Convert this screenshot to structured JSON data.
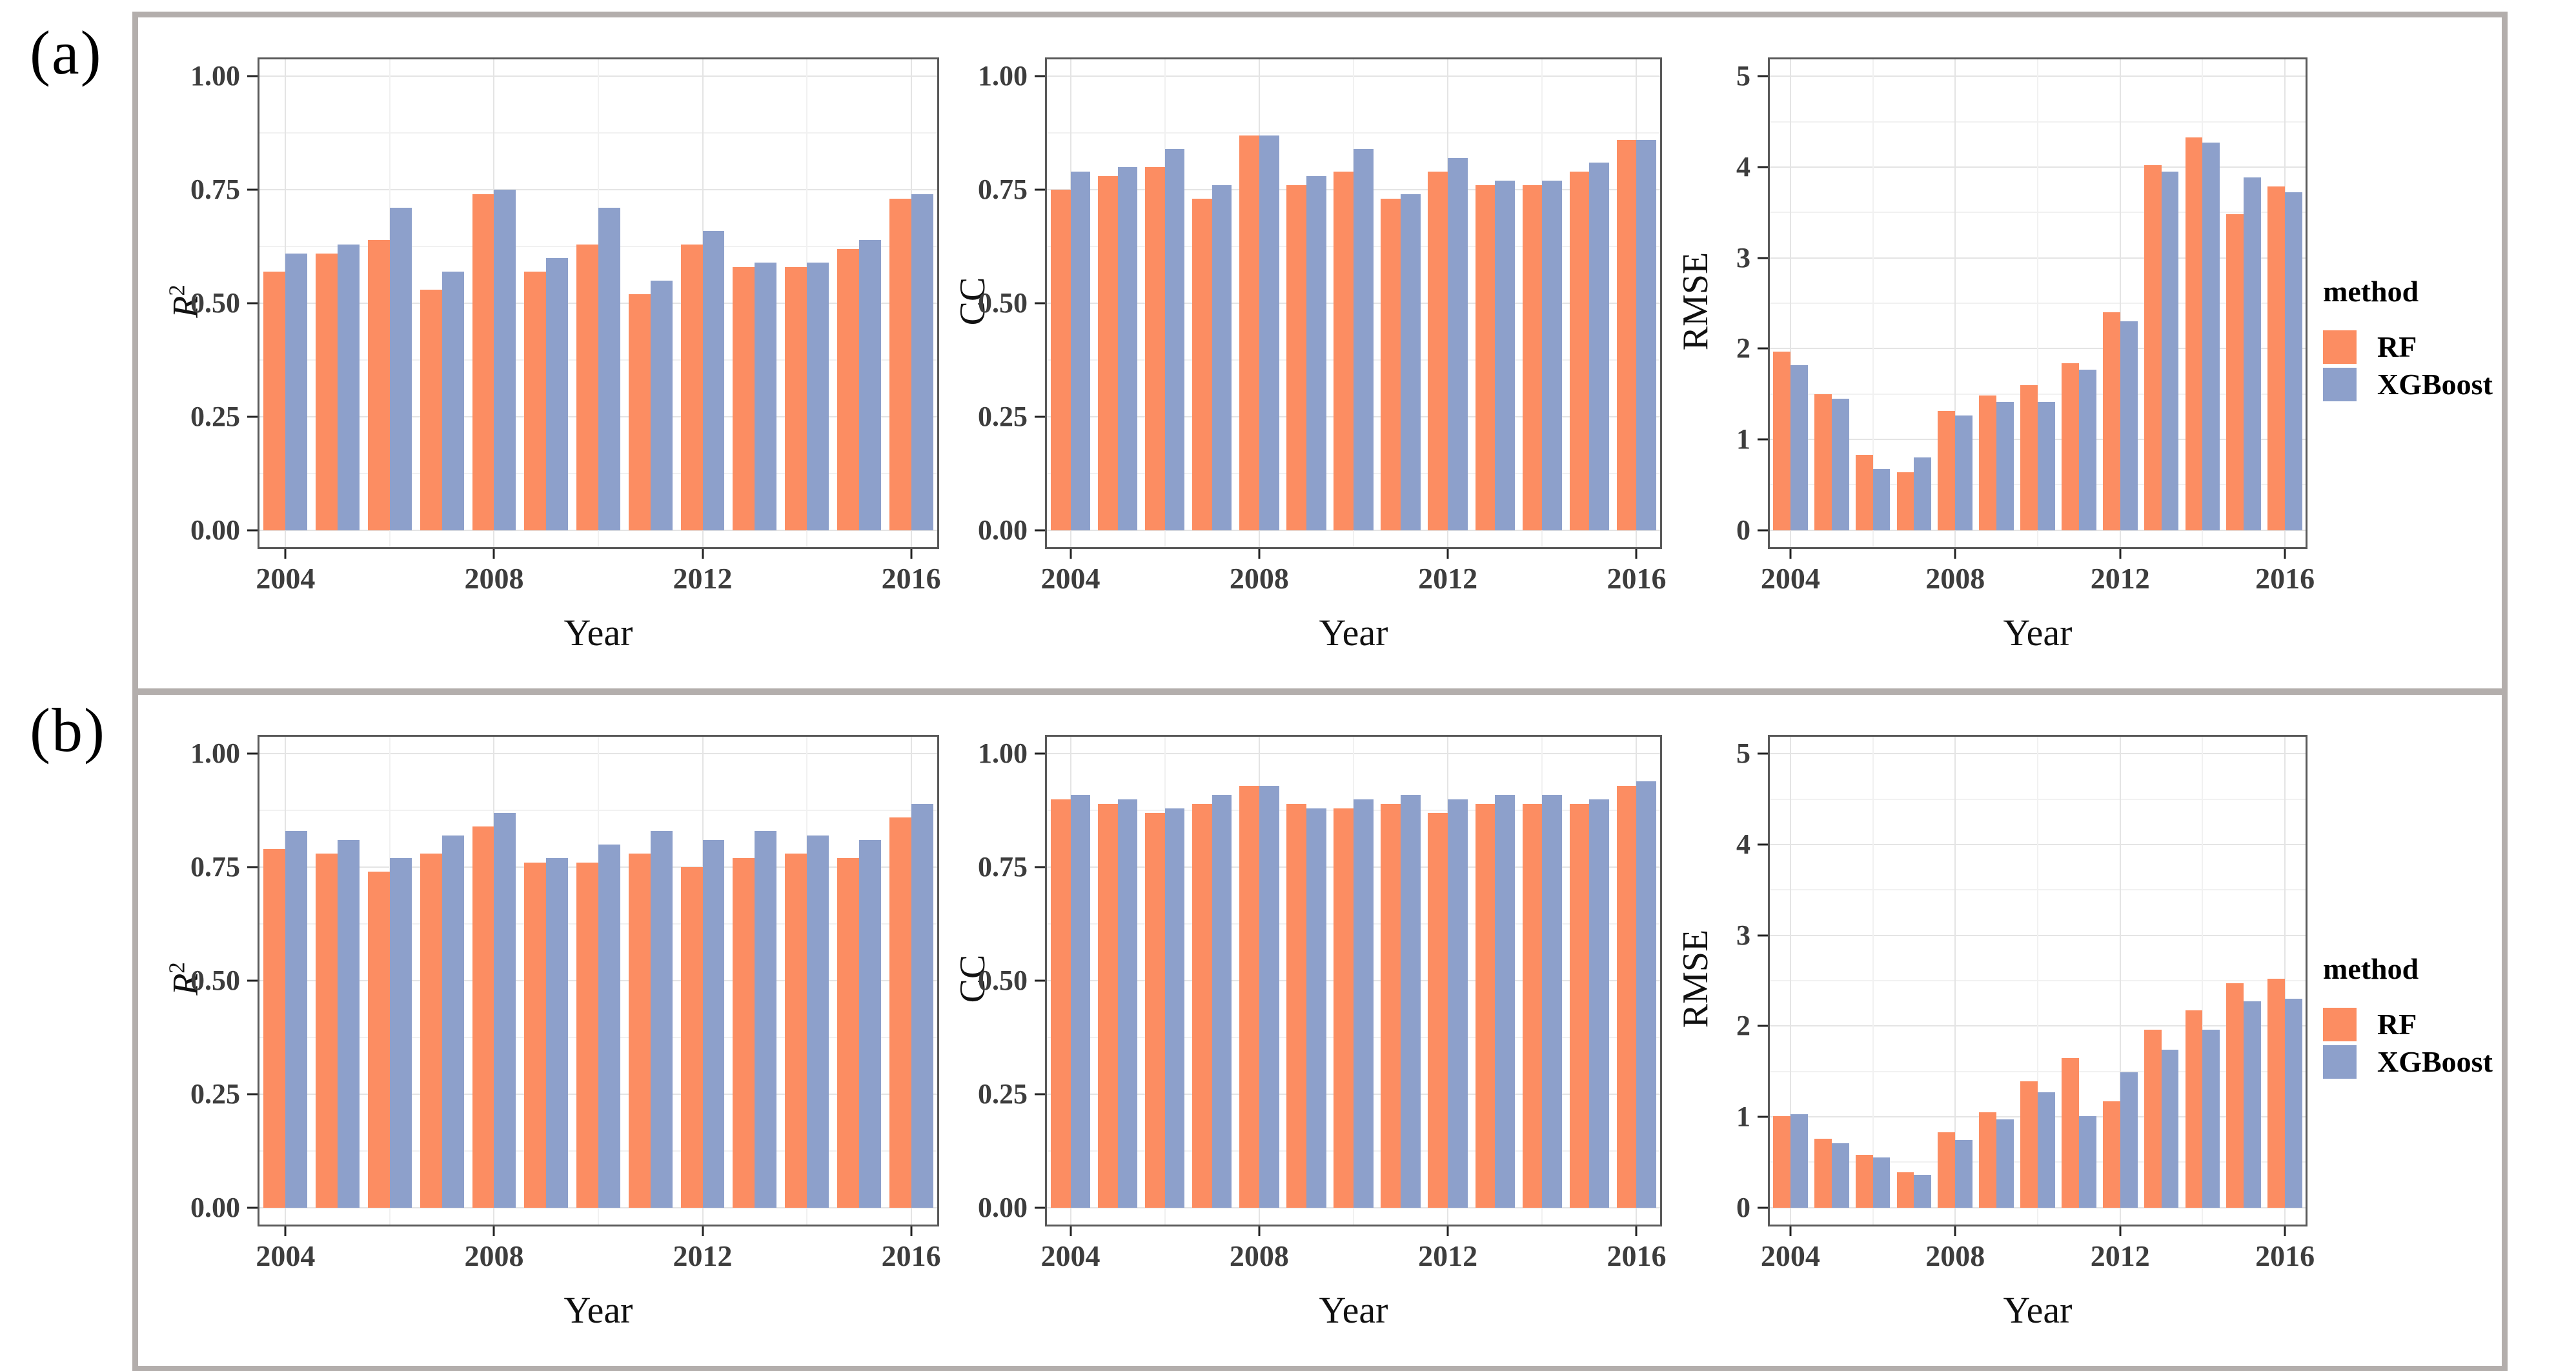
{
  "ui": {
    "panels": [
      {
        "label": "(a)"
      },
      {
        "label": "(b)"
      }
    ],
    "legend": {
      "title": "method",
      "items": [
        {
          "label": "RF",
          "color": "#FC8D62"
        },
        {
          "label": "XGBoost",
          "color": "#8DA0CB"
        }
      ]
    },
    "colors": {
      "rf_orange": "#FC8D62",
      "xgboost_blue": "#8DA0CB",
      "panel_border": "#595959",
      "outer_box_border": "#b3aeac"
    }
  },
  "chart_data": [
    {
      "panel": "a",
      "type": "bar",
      "ylabel": "R²",
      "ylabel_parts": {
        "italic": "R",
        "sup": "2"
      },
      "xlabel": "Year",
      "categories": [
        2004,
        2005,
        2006,
        2007,
        2008,
        2009,
        2010,
        2011,
        2012,
        2013,
        2014,
        2015,
        2016
      ],
      "series": [
        {
          "name": "RF",
          "color": "#FC8D62",
          "values": [
            0.57,
            0.61,
            0.64,
            0.53,
            0.74,
            0.57,
            0.63,
            0.52,
            0.63,
            0.58,
            0.58,
            0.62,
            0.73
          ]
        },
        {
          "name": "XGBoost",
          "color": "#8DA0CB",
          "values": [
            0.61,
            0.63,
            0.71,
            0.57,
            0.75,
            0.6,
            0.71,
            0.55,
            0.66,
            0.59,
            0.59,
            0.64,
            0.74
          ]
        }
      ],
      "ylim": [
        0,
        1
      ],
      "yticks": [
        0,
        0.25,
        0.5,
        0.75,
        1
      ],
      "ytick_labels": [
        "0.00",
        "0.25",
        "0.50",
        "0.75",
        "1.00"
      ],
      "xticks": [
        2004,
        2008,
        2012,
        2016
      ],
      "xtick_labels": [
        "2004",
        "2008",
        "2012",
        "2016"
      ],
      "grid": true,
      "legend_position": "right"
    },
    {
      "panel": "a",
      "type": "bar",
      "ylabel": "CC",
      "ylabel_parts": {
        "text": "CC"
      },
      "xlabel": "Year",
      "categories": [
        2004,
        2005,
        2006,
        2007,
        2008,
        2009,
        2010,
        2011,
        2012,
        2013,
        2014,
        2015,
        2016
      ],
      "series": [
        {
          "name": "RF",
          "color": "#FC8D62",
          "values": [
            0.75,
            0.78,
            0.8,
            0.73,
            0.87,
            0.76,
            0.79,
            0.73,
            0.79,
            0.76,
            0.76,
            0.79,
            0.86
          ]
        },
        {
          "name": "XGBoost",
          "color": "#8DA0CB",
          "values": [
            0.79,
            0.8,
            0.84,
            0.76,
            0.87,
            0.78,
            0.84,
            0.74,
            0.82,
            0.77,
            0.77,
            0.81,
            0.86
          ]
        }
      ],
      "ylim": [
        0,
        1
      ],
      "yticks": [
        0,
        0.25,
        0.5,
        0.75,
        1
      ],
      "ytick_labels": [
        "0.00",
        "0.25",
        "0.50",
        "0.75",
        "1.00"
      ],
      "xticks": [
        2004,
        2008,
        2012,
        2016
      ],
      "xtick_labels": [
        "2004",
        "2008",
        "2012",
        "2016"
      ],
      "grid": true,
      "legend_position": "right"
    },
    {
      "panel": "a",
      "type": "bar",
      "ylabel": "RMSE",
      "ylabel_parts": {
        "text": "RMSE"
      },
      "xlabel": "Year",
      "categories": [
        2004,
        2005,
        2006,
        2007,
        2008,
        2009,
        2010,
        2011,
        2012,
        2013,
        2014,
        2015,
        2016
      ],
      "series": [
        {
          "name": "RF",
          "color": "#FC8D62",
          "values": [
            1.97,
            1.5,
            0.83,
            0.64,
            1.31,
            1.48,
            1.6,
            1.84,
            2.4,
            4.02,
            4.33,
            3.48,
            3.79
          ]
        },
        {
          "name": "XGBoost",
          "color": "#8DA0CB",
          "values": [
            1.82,
            1.45,
            0.67,
            0.8,
            1.26,
            1.41,
            1.41,
            1.77,
            2.3,
            3.95,
            4.27,
            3.89,
            3.72
          ]
        }
      ],
      "ylim": [
        0,
        5
      ],
      "yticks": [
        0,
        1,
        2,
        3,
        4,
        5
      ],
      "ytick_labels": [
        "0",
        "1",
        "2",
        "3",
        "4",
        "5"
      ],
      "xticks": [
        2004,
        2008,
        2012,
        2016
      ],
      "xtick_labels": [
        "2004",
        "2008",
        "2012",
        "2016"
      ],
      "grid": true,
      "legend_position": "right"
    },
    {
      "panel": "b",
      "type": "bar",
      "ylabel": "R²",
      "ylabel_parts": {
        "italic": "R",
        "sup": "2"
      },
      "xlabel": "Year",
      "categories": [
        2004,
        2005,
        2006,
        2007,
        2008,
        2009,
        2010,
        2011,
        2012,
        2013,
        2014,
        2015,
        2016
      ],
      "series": [
        {
          "name": "RF",
          "color": "#FC8D62",
          "values": [
            0.79,
            0.78,
            0.74,
            0.78,
            0.84,
            0.76,
            0.76,
            0.78,
            0.75,
            0.77,
            0.78,
            0.77,
            0.86
          ]
        },
        {
          "name": "XGBoost",
          "color": "#8DA0CB",
          "values": [
            0.83,
            0.81,
            0.77,
            0.82,
            0.87,
            0.77,
            0.8,
            0.83,
            0.81,
            0.83,
            0.82,
            0.81,
            0.89
          ]
        }
      ],
      "ylim": [
        0,
        1
      ],
      "yticks": [
        0,
        0.25,
        0.5,
        0.75,
        1
      ],
      "ytick_labels": [
        "0.00",
        "0.25",
        "0.50",
        "0.75",
        "1.00"
      ],
      "xticks": [
        2004,
        2008,
        2012,
        2016
      ],
      "xtick_labels": [
        "2004",
        "2008",
        "2012",
        "2016"
      ],
      "grid": true,
      "legend_position": "right"
    },
    {
      "panel": "b",
      "type": "bar",
      "ylabel": "CC",
      "ylabel_parts": {
        "text": "CC"
      },
      "xlabel": "Year",
      "categories": [
        2004,
        2005,
        2006,
        2007,
        2008,
        2009,
        2010,
        2011,
        2012,
        2013,
        2014,
        2015,
        2016
      ],
      "series": [
        {
          "name": "RF",
          "color": "#FC8D62",
          "values": [
            0.9,
            0.89,
            0.87,
            0.89,
            0.93,
            0.89,
            0.88,
            0.89,
            0.87,
            0.89,
            0.89,
            0.89,
            0.93
          ]
        },
        {
          "name": "XGBoost",
          "color": "#8DA0CB",
          "values": [
            0.91,
            0.9,
            0.88,
            0.91,
            0.93,
            0.88,
            0.9,
            0.91,
            0.9,
            0.91,
            0.91,
            0.9,
            0.94
          ]
        }
      ],
      "ylim": [
        0,
        1
      ],
      "yticks": [
        0,
        0.25,
        0.5,
        0.75,
        1
      ],
      "ytick_labels": [
        "0.00",
        "0.25",
        "0.50",
        "0.75",
        "1.00"
      ],
      "xticks": [
        2004,
        2008,
        2012,
        2016
      ],
      "xtick_labels": [
        "2004",
        "2008",
        "2012",
        "2016"
      ],
      "grid": true,
      "legend_position": "right"
    },
    {
      "panel": "b",
      "type": "bar",
      "ylabel": "RMSE",
      "ylabel_parts": {
        "text": "RMSE"
      },
      "xlabel": "Year",
      "categories": [
        2004,
        2005,
        2006,
        2007,
        2008,
        2009,
        2010,
        2011,
        2012,
        2013,
        2014,
        2015,
        2016
      ],
      "series": [
        {
          "name": "RF",
          "color": "#FC8D62",
          "values": [
            1.01,
            0.76,
            0.58,
            0.39,
            0.83,
            1.05,
            1.39,
            1.65,
            1.17,
            1.96,
            2.17,
            2.47,
            2.52
          ]
        },
        {
          "name": "XGBoost",
          "color": "#8DA0CB",
          "values": [
            1.03,
            0.71,
            0.55,
            0.36,
            0.74,
            0.97,
            1.27,
            1.01,
            1.49,
            1.74,
            1.96,
            2.27,
            2.3
          ]
        }
      ],
      "ylim": [
        0,
        5
      ],
      "yticks": [
        0,
        1,
        2,
        3,
        4,
        5
      ],
      "ytick_labels": [
        "0",
        "1",
        "2",
        "3",
        "4",
        "5"
      ],
      "xticks": [
        2004,
        2008,
        2012,
        2016
      ],
      "xtick_labels": [
        "2004",
        "2008",
        "2012",
        "2016"
      ],
      "grid": true,
      "legend_position": "right"
    }
  ]
}
